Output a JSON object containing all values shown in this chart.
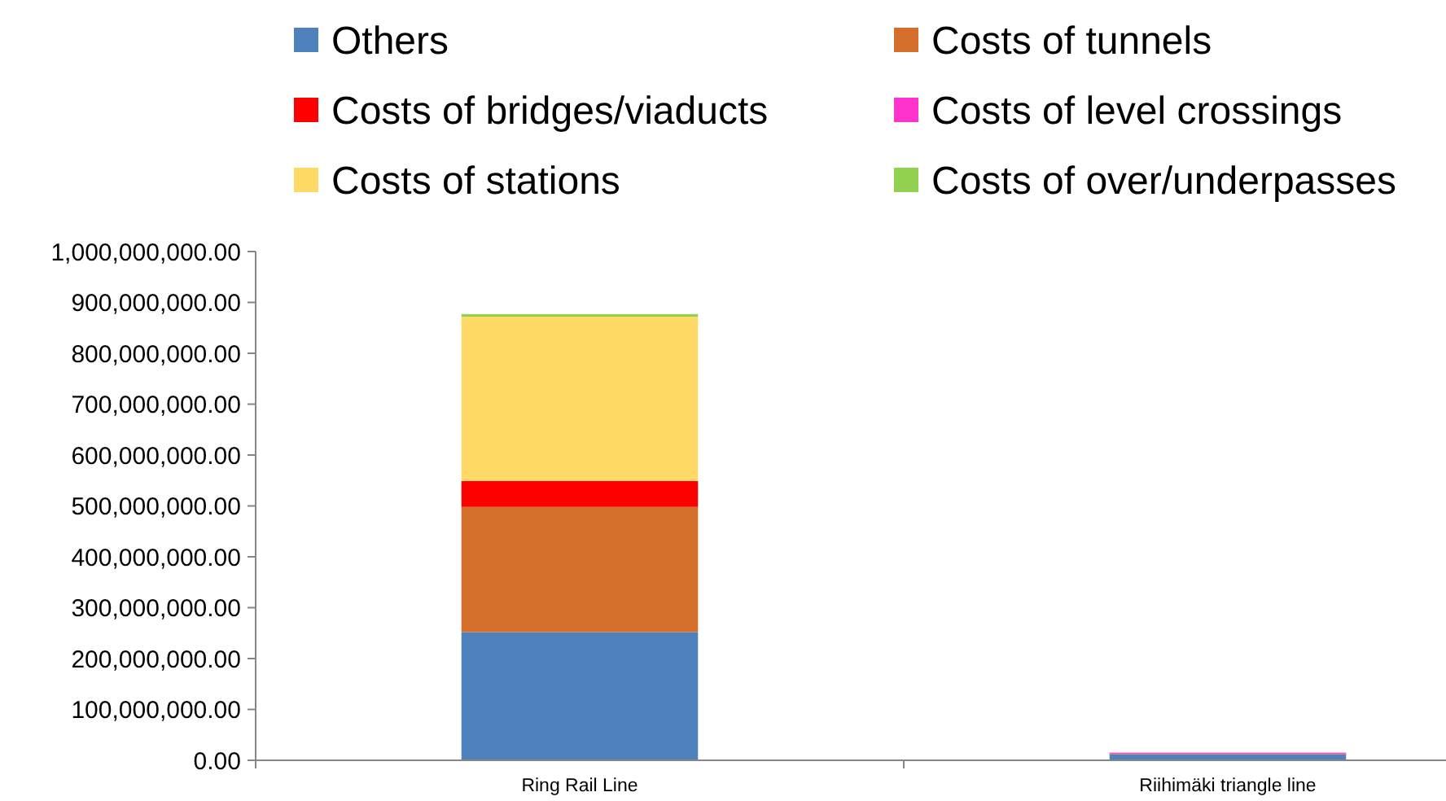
{
  "chart_data": {
    "type": "bar",
    "stacked": true,
    "categories": [
      "Ring Rail Line",
      "Riihimäki triangle line"
    ],
    "series": [
      {
        "name": "Others",
        "color": "#4f81bd",
        "values": [
          252000000,
          12000000
        ]
      },
      {
        "name": "Costs of tunnels",
        "color": "#d46f2b",
        "values": [
          246000000,
          1000000
        ]
      },
      {
        "name": "Costs of bridges/viaducts",
        "color": "#ff0000",
        "values": [
          51000000,
          0
        ]
      },
      {
        "name": "Costs of level crossings",
        "color": "#ff33cc",
        "values": [
          0,
          2000000
        ]
      },
      {
        "name": "Costs of stations",
        "color": "#ffd966",
        "values": [
          323000000,
          0
        ]
      },
      {
        "name": "Costs of over/underpasses",
        "color": "#92d050",
        "values": [
          5000000,
          0
        ]
      }
    ],
    "ylim": [
      0,
      1000000000
    ],
    "yticks": [
      {
        "value": 0,
        "label": "0.00"
      },
      {
        "value": 100000000,
        "label": "100,000,000.00"
      },
      {
        "value": 200000000,
        "label": "200,000,000.00"
      },
      {
        "value": 300000000,
        "label": "300,000,000.00"
      },
      {
        "value": 400000000,
        "label": "400,000,000.00"
      },
      {
        "value": 500000000,
        "label": "500,000,000.00"
      },
      {
        "value": 600000000,
        "label": "600,000,000.00"
      },
      {
        "value": 700000000,
        "label": "700,000,000.00"
      },
      {
        "value": 800000000,
        "label": "800,000,000.00"
      },
      {
        "value": 900000000,
        "label": "900,000,000.00"
      },
      {
        "value": 1000000000,
        "label": "1,000,000,000.00"
      }
    ],
    "legend": "top",
    "grid": false
  }
}
